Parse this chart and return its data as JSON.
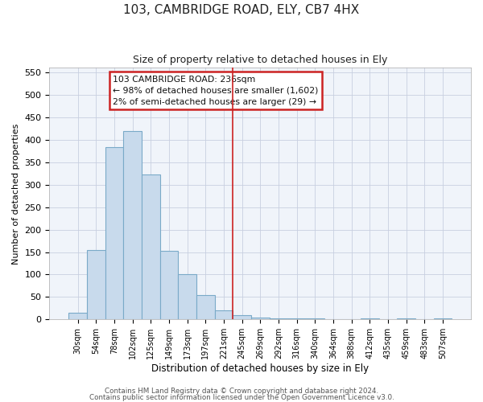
{
  "title": "103, CAMBRIDGE ROAD, ELY, CB7 4HX",
  "subtitle": "Size of property relative to detached houses in Ely",
  "xlabel": "Distribution of detached houses by size in Ely",
  "ylabel": "Number of detached properties",
  "bin_labels": [
    "30sqm",
    "54sqm",
    "78sqm",
    "102sqm",
    "125sqm",
    "149sqm",
    "173sqm",
    "197sqm",
    "221sqm",
    "245sqm",
    "269sqm",
    "292sqm",
    "316sqm",
    "340sqm",
    "364sqm",
    "388sqm",
    "412sqm",
    "435sqm",
    "459sqm",
    "483sqm",
    "507sqm"
  ],
  "bar_heights": [
    15,
    155,
    383,
    420,
    322,
    153,
    100,
    55,
    20,
    10,
    5,
    3,
    3,
    3,
    0,
    0,
    3,
    0,
    3,
    0,
    3
  ],
  "bar_color": "#c8daec",
  "bar_edge_color": "#7aaac8",
  "ylim": [
    0,
    560
  ],
  "yticks": [
    0,
    50,
    100,
    150,
    200,
    250,
    300,
    350,
    400,
    450,
    500,
    550
  ],
  "vline_x": 9.0,
  "vline_color": "#cc2222",
  "annotation_title": "103 CAMBRIDGE ROAD: 236sqm",
  "annotation_line1": "← 98% of detached houses are smaller (1,602)",
  "annotation_line2": "2% of semi-detached houses are larger (29) →",
  "annotation_box_color": "#cc2222",
  "annotation_bg": "#ffffff",
  "footer1": "Contains HM Land Registry data © Crown copyright and database right 2024.",
  "footer2": "Contains public sector information licensed under the Open Government Licence v3.0.",
  "background_color": "#ffffff",
  "plot_bg_color": "#f0f4fa",
  "grid_color": "#c8cfe0"
}
